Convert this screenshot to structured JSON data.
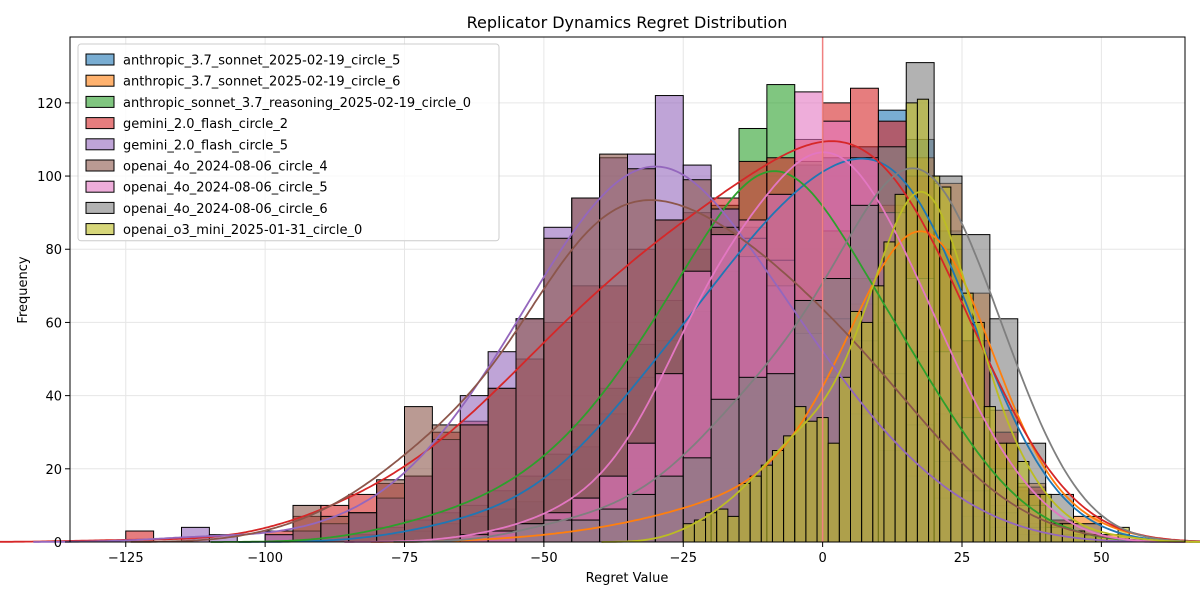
{
  "chart_data": {
    "type": "histogram",
    "title": "Replicator Dynamics Regret Distribution",
    "xlabel": "Regret Value",
    "ylabel": "Frequency",
    "xlim": [
      -135,
      65
    ],
    "ylim": [
      0,
      138
    ],
    "xticks": [
      -125,
      -100,
      -75,
      -50,
      -25,
      0,
      25,
      50
    ],
    "yticks": [
      0,
      20,
      40,
      60,
      80,
      100,
      120
    ],
    "grid": true,
    "legend_position": "top-left",
    "vline": {
      "x": 0,
      "color": "#f08080"
    },
    "series": [
      {
        "name": "anthropic_3.7_sonnet_2025-02-19_circle_5",
        "color": "#1f77b4",
        "bin_width": 5,
        "bins": [
          [
            -80,
            2
          ],
          [
            -75,
            3
          ],
          [
            -70,
            5
          ],
          [
            -65,
            7
          ],
          [
            -60,
            9
          ],
          [
            -55,
            11
          ],
          [
            -50,
            17
          ],
          [
            -45,
            26
          ],
          [
            -40,
            35
          ],
          [
            -35,
            45
          ],
          [
            -30,
            55
          ],
          [
            -25,
            63
          ],
          [
            -20,
            74
          ],
          [
            -15,
            86
          ],
          [
            -10,
            95
          ],
          [
            -5,
            103
          ],
          [
            0,
            105
          ],
          [
            5,
            108
          ],
          [
            10,
            118
          ],
          [
            15,
            110
          ],
          [
            20,
            85
          ],
          [
            25,
            55
          ],
          [
            30,
            30
          ],
          [
            35,
            14
          ],
          [
            40,
            6
          ],
          [
            45,
            2
          ]
        ]
      },
      {
        "name": "anthropic_3.7_sonnet_2025-02-19_circle_6",
        "color": "#ff7f0e",
        "bin_width": 5,
        "bins": [
          [
            -60,
            2
          ],
          [
            -50,
            3
          ],
          [
            -45,
            3
          ],
          [
            -40,
            4
          ],
          [
            -35,
            6
          ],
          [
            -30,
            8
          ],
          [
            -25,
            10
          ],
          [
            -20,
            12
          ],
          [
            -15,
            15
          ],
          [
            -10,
            20
          ],
          [
            -5,
            30
          ],
          [
            0,
            45
          ],
          [
            5,
            65
          ],
          [
            10,
            92
          ],
          [
            15,
            105
          ],
          [
            20,
            98
          ],
          [
            25,
            68
          ],
          [
            30,
            36
          ],
          [
            35,
            16
          ],
          [
            40,
            6
          ],
          [
            45,
            7
          ],
          [
            50,
            2
          ]
        ]
      },
      {
        "name": "anthropic_sonnet_3.7_reasoning_2025-02-19_circle_0",
        "color": "#2ca02c",
        "bin_width": 5,
        "bins": [
          [
            -85,
            2
          ],
          [
            -80,
            4
          ],
          [
            -75,
            6
          ],
          [
            -70,
            8
          ],
          [
            -65,
            10
          ],
          [
            -60,
            14
          ],
          [
            -55,
            18
          ],
          [
            -50,
            24
          ],
          [
            -45,
            32
          ],
          [
            -40,
            42
          ],
          [
            -35,
            54
          ],
          [
            -30,
            66
          ],
          [
            -25,
            80
          ],
          [
            -20,
            92
          ],
          [
            -15,
            113
          ],
          [
            -10,
            125
          ],
          [
            -5,
            104
          ],
          [
            0,
            85
          ],
          [
            5,
            72
          ],
          [
            10,
            60
          ],
          [
            15,
            52
          ],
          [
            20,
            35
          ],
          [
            25,
            20
          ],
          [
            30,
            10
          ],
          [
            35,
            5
          ],
          [
            40,
            2
          ]
        ]
      },
      {
        "name": "gemini_2.0_flash_circle_2",
        "color": "#d62728",
        "bin_width": 5,
        "bins": [
          [
            -125,
            3
          ],
          [
            -100,
            3
          ],
          [
            -95,
            7
          ],
          [
            -90,
            10
          ],
          [
            -85,
            13
          ],
          [
            -80,
            16
          ],
          [
            -75,
            18
          ],
          [
            -70,
            30
          ],
          [
            -65,
            33
          ],
          [
            -60,
            42
          ],
          [
            -55,
            50
          ],
          [
            -50,
            60
          ],
          [
            -45,
            70
          ],
          [
            -40,
            70
          ],
          [
            -35,
            80
          ],
          [
            -30,
            88
          ],
          [
            -25,
            90
          ],
          [
            -20,
            94
          ],
          [
            -15,
            104
          ],
          [
            -10,
            105
          ],
          [
            -5,
            110
          ],
          [
            0,
            120
          ],
          [
            5,
            124
          ],
          [
            10,
            115
          ],
          [
            15,
            100
          ],
          [
            20,
            80
          ],
          [
            25,
            55
          ],
          [
            30,
            30
          ],
          [
            35,
            15
          ],
          [
            40,
            6
          ]
        ]
      },
      {
        "name": "gemini_2.0_flash_circle_5",
        "color": "#9467bd",
        "bin_width": 5,
        "bins": [
          [
            -115,
            4
          ],
          [
            -110,
            2
          ],
          [
            -100,
            2
          ],
          [
            -95,
            3
          ],
          [
            -90,
            5
          ],
          [
            -85,
            8
          ],
          [
            -80,
            12
          ],
          [
            -75,
            18
          ],
          [
            -70,
            28
          ],
          [
            -65,
            40
          ],
          [
            -60,
            52
          ],
          [
            -55,
            61
          ],
          [
            -50,
            86
          ],
          [
            -45,
            94
          ],
          [
            -40,
            105
          ],
          [
            -35,
            106
          ],
          [
            -30,
            122
          ],
          [
            -25,
            103
          ],
          [
            -20,
            91
          ],
          [
            -15,
            78
          ],
          [
            -10,
            70
          ],
          [
            -5,
            57
          ],
          [
            0,
            45
          ],
          [
            5,
            35
          ],
          [
            10,
            25
          ],
          [
            15,
            18
          ],
          [
            20,
            12
          ],
          [
            25,
            7
          ],
          [
            30,
            4
          ],
          [
            35,
            2
          ]
        ]
      },
      {
        "name": "openai_4o_2024-08-06_circle_4",
        "color": "#8c564b",
        "bin_width": 5,
        "bins": [
          [
            -95,
            10
          ],
          [
            -90,
            7
          ],
          [
            -85,
            8
          ],
          [
            -80,
            17
          ],
          [
            -75,
            37
          ],
          [
            -70,
            32
          ],
          [
            -65,
            32
          ],
          [
            -60,
            42
          ],
          [
            -55,
            61
          ],
          [
            -50,
            83
          ],
          [
            -45,
            94
          ],
          [
            -40,
            106
          ],
          [
            -35,
            102
          ],
          [
            -30,
            88
          ],
          [
            -25,
            99
          ],
          [
            -20,
            86
          ],
          [
            -15,
            83
          ],
          [
            -10,
            77
          ],
          [
            -5,
            66
          ],
          [
            0,
            61
          ],
          [
            5,
            55
          ],
          [
            10,
            46
          ],
          [
            15,
            32
          ],
          [
            20,
            22
          ],
          [
            25,
            14
          ],
          [
            30,
            8
          ],
          [
            35,
            4
          ],
          [
            40,
            2
          ]
        ]
      },
      {
        "name": "openai_4o_2024-08-06_circle_5",
        "color": "#e377c2",
        "bin_width": 5,
        "bins": [
          [
            -65,
            2
          ],
          [
            -60,
            3
          ],
          [
            -55,
            5
          ],
          [
            -50,
            8
          ],
          [
            -45,
            12
          ],
          [
            -40,
            18
          ],
          [
            -35,
            27
          ],
          [
            -30,
            46
          ],
          [
            -25,
            74
          ],
          [
            -20,
            84
          ],
          [
            -15,
            88
          ],
          [
            -10,
            95
          ],
          [
            -5,
            123
          ],
          [
            0,
            115
          ],
          [
            5,
            105
          ],
          [
            10,
            90
          ],
          [
            15,
            72
          ],
          [
            20,
            52
          ],
          [
            25,
            34
          ],
          [
            30,
            20
          ],
          [
            35,
            10
          ],
          [
            40,
            4
          ]
        ]
      },
      {
        "name": "openai_4o_2024-08-06_circle_6",
        "color": "#7f7f7f",
        "bin_width": 5,
        "bins": [
          [
            -55,
            5
          ],
          [
            -50,
            6
          ],
          [
            -45,
            6
          ],
          [
            -40,
            9
          ],
          [
            -35,
            13
          ],
          [
            -30,
            18
          ],
          [
            -25,
            23
          ],
          [
            -20,
            39
          ],
          [
            -15,
            45
          ],
          [
            -10,
            46
          ],
          [
            -5,
            66
          ],
          [
            0,
            72
          ],
          [
            5,
            92
          ],
          [
            10,
            108
          ],
          [
            15,
            131
          ],
          [
            20,
            100
          ],
          [
            25,
            84
          ],
          [
            30,
            61
          ],
          [
            35,
            27
          ],
          [
            40,
            13
          ],
          [
            45,
            5
          ]
        ]
      },
      {
        "name": "openai_o3_mini_2025-01-31_circle_0",
        "color": "#bcbd22",
        "bin_width": 2,
        "bins": [
          [
            -25,
            5
          ],
          [
            -23,
            6
          ],
          [
            -21,
            8
          ],
          [
            -19,
            9
          ],
          [
            -17,
            7
          ],
          [
            -15,
            16
          ],
          [
            -13,
            18
          ],
          [
            -11,
            21
          ],
          [
            -9,
            25
          ],
          [
            -7,
            29
          ],
          [
            -5,
            37
          ],
          [
            -3,
            33
          ],
          [
            -1,
            34
          ],
          [
            1,
            27
          ],
          [
            3,
            45
          ],
          [
            5,
            63
          ],
          [
            7,
            60
          ],
          [
            9,
            70
          ],
          [
            11,
            82
          ],
          [
            13,
            95
          ],
          [
            15,
            120
          ],
          [
            17,
            121
          ],
          [
            19,
            100
          ],
          [
            21,
            97
          ],
          [
            23,
            84
          ],
          [
            25,
            68
          ],
          [
            27,
            60
          ],
          [
            29,
            37
          ],
          [
            31,
            27
          ],
          [
            33,
            27
          ],
          [
            35,
            22
          ],
          [
            37,
            13
          ],
          [
            39,
            13
          ],
          [
            41,
            5
          ],
          [
            43,
            5
          ],
          [
            45,
            3
          ],
          [
            47,
            2
          ],
          [
            49,
            2
          ],
          [
            51,
            1
          ],
          [
            53,
            4
          ]
        ]
      }
    ]
  }
}
